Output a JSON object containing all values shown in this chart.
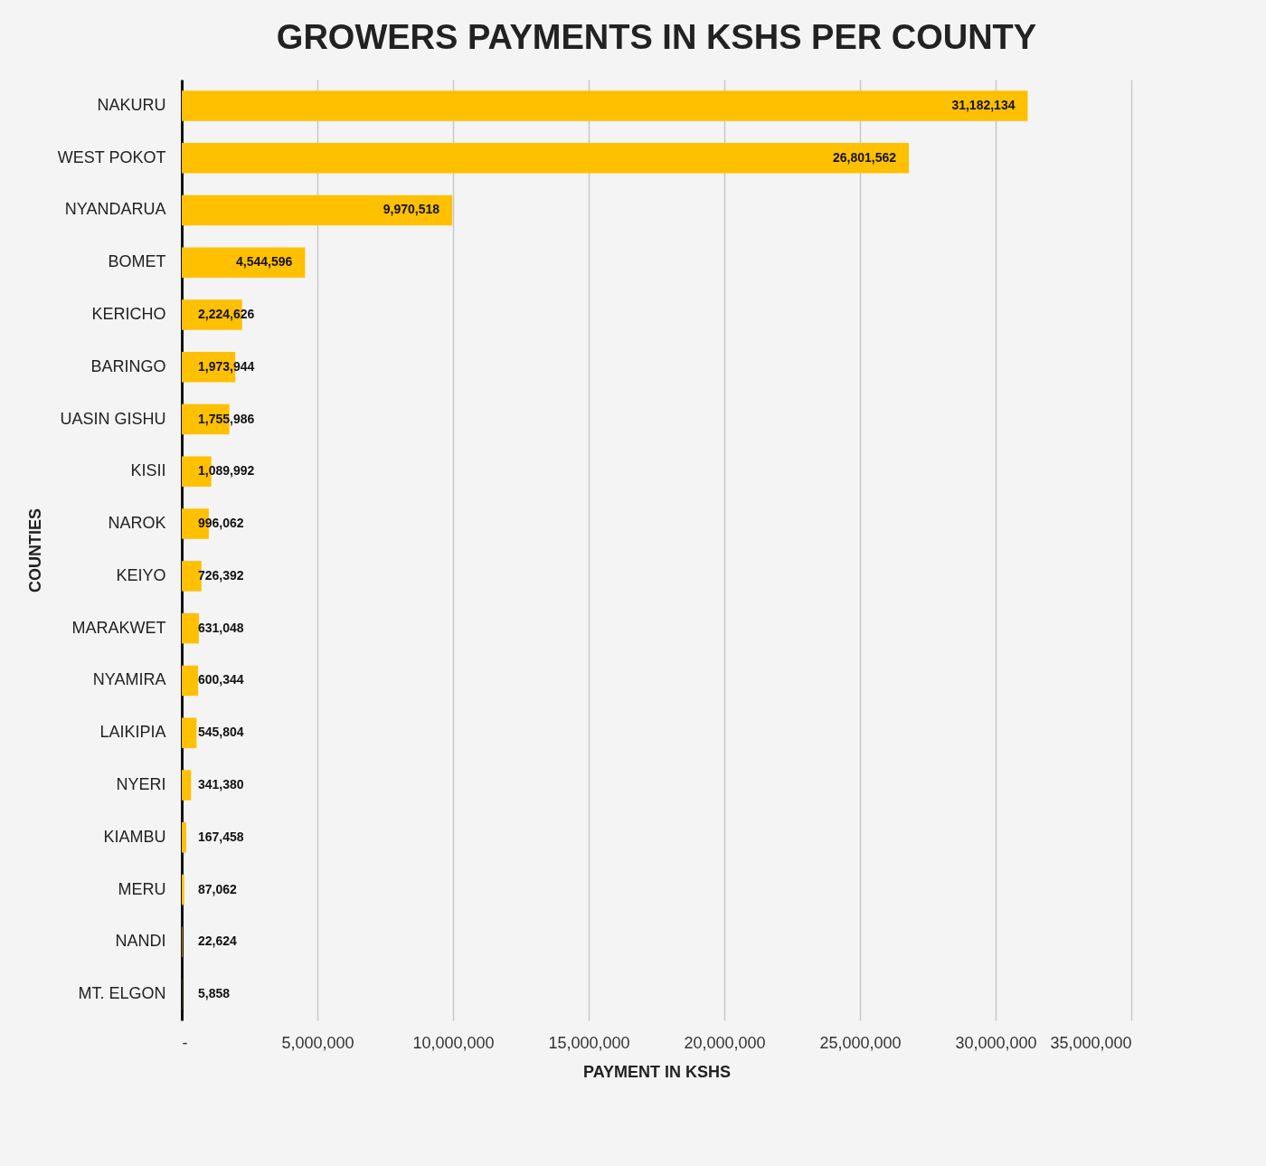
{
  "chart_data": {
    "type": "bar",
    "orientation": "horizontal",
    "title": "GROWERS PAYMENTS IN KSHS PER COUNTY",
    "xlabel": "PAYMENT IN KSHS",
    "ylabel": "COUNTIES",
    "categories": [
      "NAKURU",
      "WEST POKOT",
      "NYANDARUA",
      "BOMET",
      "KERICHO",
      "BARINGO",
      "UASIN GISHU",
      "KISII",
      "NAROK",
      "KEIYO",
      "MARAKWET",
      "NYAMIRA",
      "LAIKIPIA",
      "NYERI",
      "KIAMBU",
      "MERU",
      "NANDI",
      "MT. ELGON"
    ],
    "values": [
      31182134,
      26801562,
      9970518,
      4544596,
      2224626,
      1973944,
      1755986,
      1089992,
      996062,
      726392,
      631048,
      600344,
      545804,
      341380,
      167458,
      87062,
      22624,
      5858
    ],
    "value_labels": [
      "31,182,134",
      "26,801,562",
      "9,970,518",
      "4,544,596",
      "2,224,626",
      "1,973,944",
      "1,755,986",
      "1,089,992",
      "996,062",
      "726,392",
      "631,048",
      "600,344",
      "545,804",
      "341,380",
      "167,458",
      "87,062",
      "22,624",
      "5,858"
    ],
    "color": "#ffc000",
    "xlim": [
      0,
      35000000
    ],
    "xticks": [
      {
        "value": 0,
        "label": "-"
      },
      {
        "value": 5000000,
        "label": "5,000,000"
      },
      {
        "value": 10000000,
        "label": "10,000,000"
      },
      {
        "value": 15000000,
        "label": "15,000,000"
      },
      {
        "value": 20000000,
        "label": "20,000,000"
      },
      {
        "value": 25000000,
        "label": "25,000,000"
      },
      {
        "value": 30000000,
        "label": "30,000,000"
      },
      {
        "value": 35000000,
        "label": "35,000,000"
      }
    ],
    "grid": "x"
  }
}
